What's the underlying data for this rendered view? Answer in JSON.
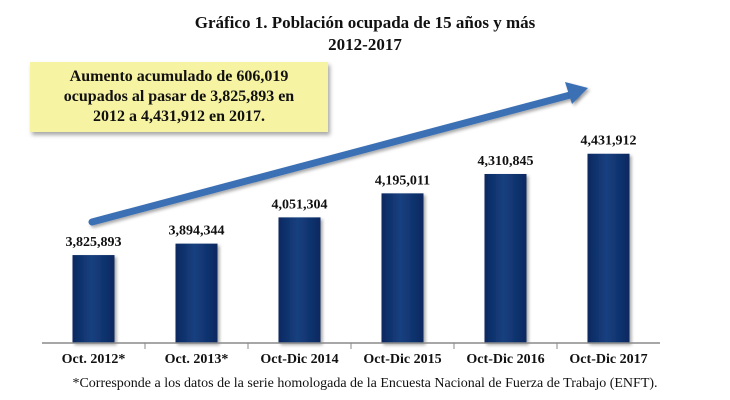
{
  "chart_data": {
    "type": "bar",
    "title": "Gráfico 1. Población ocupada de 15 años y más",
    "subtitle": "2012-2017",
    "categories": [
      "Oct. 2012*",
      "Oct. 2013*",
      "Oct-Dic 2014",
      "Oct-Dic 2015",
      "Oct-Dic 2016",
      "Oct-Dic 2017"
    ],
    "values": [
      3825893,
      3894344,
      4051304,
      4195011,
      4310845,
      4431912
    ],
    "value_labels": [
      "3,825,893",
      "3,894,344",
      "4,051,304",
      "4,195,011",
      "4,310,845",
      "4,431,912"
    ],
    "ylim": [
      3300000,
      4550000
    ],
    "grid": false,
    "annotation": "Aumento acumulado de 606,019\nocupados al pasar de 3,825,893 en\n2012 a 4,431,912 en 2017.",
    "footnote": "*Corresponde a los datos de la serie homologada de la Encuesta Nacional de Fuerza de Trabajo (ENFT).",
    "colors": {
      "bar": "#0b2d6b",
      "bar_highlight": "#274c91",
      "arrow": "#3a6fb5",
      "callout_bg": "#f6f3a2"
    }
  }
}
